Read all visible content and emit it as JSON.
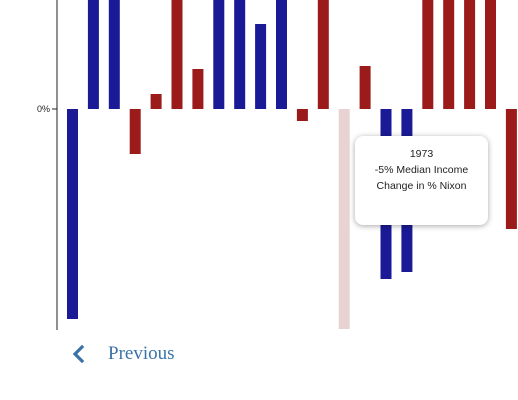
{
  "chart_data": {
    "type": "bar",
    "ylim": [
      -22,
      11
    ],
    "y_ticks": [
      {
        "value": 0,
        "label": "0%"
      }
    ],
    "grid": false,
    "colors": {
      "blue": "#1a1a96",
      "red": "#9b1b1b",
      "highlight": "#e8d2d2"
    },
    "bars": [
      {
        "value": -21,
        "color": "blue"
      },
      {
        "value": 11,
        "color": "blue"
      },
      {
        "value": 11,
        "color": "blue"
      },
      {
        "value": -4.5,
        "color": "red"
      },
      {
        "value": 1.5,
        "color": "red"
      },
      {
        "value": 11,
        "color": "red"
      },
      {
        "value": 4,
        "color": "red"
      },
      {
        "value": 11,
        "color": "blue"
      },
      {
        "value": 11,
        "color": "blue"
      },
      {
        "value": 8.5,
        "color": "blue"
      },
      {
        "value": 11,
        "color": "blue"
      },
      {
        "value": -1.2,
        "color": "red"
      },
      {
        "value": 11,
        "color": "red"
      },
      {
        "value": -22,
        "color": "highlight",
        "highlighted": true
      },
      {
        "value": 4.3,
        "color": "red"
      },
      {
        "value": -17,
        "color": "blue"
      },
      {
        "value": -16.3,
        "color": "blue"
      },
      {
        "value": 11,
        "color": "red"
      },
      {
        "value": 11,
        "color": "red"
      },
      {
        "value": 11,
        "color": "red"
      },
      {
        "value": 11,
        "color": "red"
      },
      {
        "value": -12,
        "color": "red"
      }
    ]
  },
  "tooltip": {
    "year": "1973",
    "line2": "-5% Median Income",
    "line3": "Change in % Nixon"
  },
  "nav": {
    "previous_label": "Previous",
    "previous_icon": "chevron-left-icon",
    "link_color": "#3a73a8"
  }
}
